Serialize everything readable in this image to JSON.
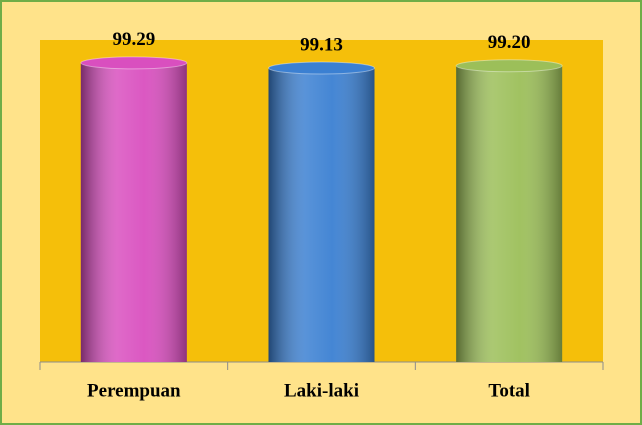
{
  "chart_data": {
    "type": "bar",
    "categories": [
      "Perempuan",
      "Laki-laki",
      "Total"
    ],
    "values": [
      99.29,
      99.13,
      99.2
    ],
    "value_labels": [
      "99.29",
      "99.13",
      "99.20"
    ],
    "colors": [
      "#d94fbf",
      "#3b80d2",
      "#9cbf59"
    ],
    "ylim": [
      90,
      100
    ]
  }
}
